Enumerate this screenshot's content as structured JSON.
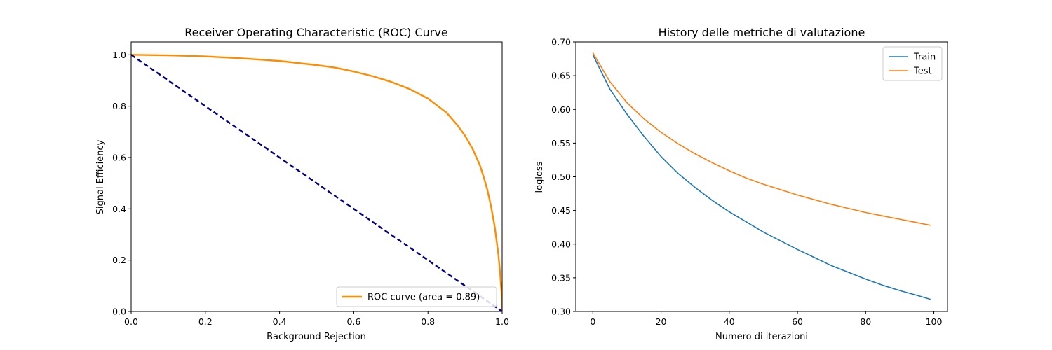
{
  "chart_data": [
    {
      "type": "line",
      "title": "Receiver Operating Characteristic (ROC) Curve",
      "xlabel": "Background Rejection",
      "ylabel": "Signal Efficiency",
      "xlim": [
        0.0,
        1.0
      ],
      "ylim": [
        0.0,
        1.05
      ],
      "xticks": [
        0.0,
        0.2,
        0.4,
        0.6,
        0.8,
        1.0
      ],
      "yticks": [
        0.0,
        0.2,
        0.4,
        0.6,
        0.8,
        1.0
      ],
      "grid": false,
      "legend_position": "lower-right",
      "series": [
        {
          "name": "ROC curve (area = 0.89)",
          "color": "#ff8c00",
          "style": "solid",
          "x": [
            0.0,
            0.1,
            0.2,
            0.3,
            0.4,
            0.5,
            0.55,
            0.6,
            0.65,
            0.7,
            0.75,
            0.8,
            0.85,
            0.88,
            0.9,
            0.92,
            0.94,
            0.95,
            0.96,
            0.97,
            0.98,
            0.99,
            0.995,
            1.0,
            1.0
          ],
          "y": [
            1.0,
            0.998,
            0.994,
            0.986,
            0.976,
            0.96,
            0.95,
            0.935,
            0.917,
            0.895,
            0.867,
            0.83,
            0.775,
            0.725,
            0.685,
            0.635,
            0.57,
            0.525,
            0.475,
            0.41,
            0.33,
            0.22,
            0.14,
            0.04,
            0.0
          ]
        },
        {
          "name": "",
          "color": "#000080",
          "style": "dashed",
          "x": [
            0.0,
            1.0
          ],
          "y": [
            1.0,
            0.0
          ]
        }
      ]
    },
    {
      "type": "line",
      "title": "History delle metriche di valutazione",
      "xlabel": "Numero di iterazioni",
      "ylabel": "logloss",
      "xlim": [
        -5,
        104
      ],
      "ylim": [
        0.3,
        0.7
      ],
      "xticks": [
        0,
        20,
        40,
        60,
        80,
        100
      ],
      "yticks": [
        0.3,
        0.35,
        0.4,
        0.45,
        0.5,
        0.55,
        0.6,
        0.65,
        0.7
      ],
      "grid": false,
      "legend_position": "top-right",
      "series": [
        {
          "name": "Train",
          "color": "#1f77b4",
          "x": [
            0,
            5,
            10,
            15,
            20,
            25,
            30,
            35,
            40,
            45,
            50,
            55,
            60,
            65,
            70,
            75,
            80,
            85,
            90,
            95,
            99
          ],
          "y": [
            0.681,
            0.63,
            0.593,
            0.56,
            0.53,
            0.505,
            0.484,
            0.465,
            0.448,
            0.433,
            0.418,
            0.405,
            0.392,
            0.38,
            0.368,
            0.358,
            0.348,
            0.339,
            0.331,
            0.324,
            0.318
          ]
        },
        {
          "name": "Test",
          "color": "#ff7f0e",
          "x": [
            0,
            5,
            10,
            15,
            20,
            25,
            30,
            35,
            40,
            45,
            50,
            55,
            60,
            65,
            70,
            75,
            80,
            85,
            90,
            95,
            99
          ],
          "y": [
            0.684,
            0.641,
            0.61,
            0.586,
            0.566,
            0.549,
            0.534,
            0.521,
            0.509,
            0.498,
            0.489,
            0.481,
            0.473,
            0.466,
            0.459,
            0.453,
            0.447,
            0.442,
            0.437,
            0.432,
            0.428
          ]
        }
      ]
    }
  ]
}
